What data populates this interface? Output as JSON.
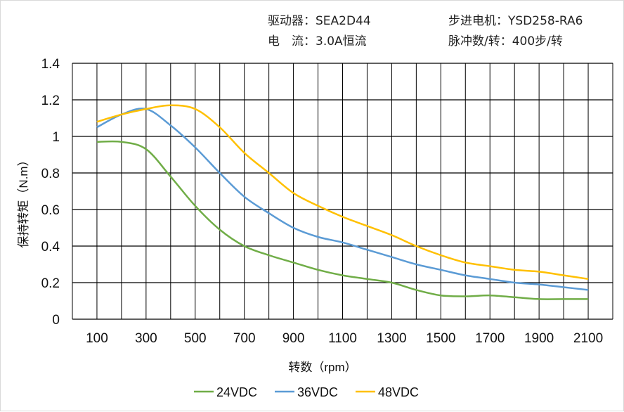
{
  "header": {
    "driver": "驱动器：SEA2D44",
    "motor": "步进电机：YSD258-RA6",
    "current": "电　流：3.0A恒流",
    "pulses": "脉冲数/转：400步/转"
  },
  "chart_data": {
    "type": "line",
    "xlabel": "转数（rpm）",
    "ylabel": "保持转矩（N.m）",
    "xlim": [
      0,
      2200
    ],
    "ylim": [
      0,
      1.4
    ],
    "grid": true,
    "legend": "bottom",
    "xticks": [
      "100",
      "300",
      "500",
      "700",
      "900",
      "1100",
      "1300",
      "1500",
      "1700",
      "1900",
      "2100"
    ],
    "yticks": [
      "0",
      "0.2",
      "0.4",
      "0.6",
      "0.8",
      "1",
      "1.2",
      "1.4"
    ],
    "x": [
      100,
      200,
      300,
      400,
      500,
      600,
      700,
      800,
      900,
      1000,
      1100,
      1200,
      1300,
      1400,
      1500,
      1600,
      1700,
      1800,
      1900,
      2000,
      2100
    ],
    "series": [
      {
        "name": "24VDC",
        "color": "#70ad47",
        "values": [
          0.97,
          0.97,
          0.93,
          0.78,
          0.62,
          0.49,
          0.4,
          0.35,
          0.31,
          0.27,
          0.24,
          0.22,
          0.2,
          0.16,
          0.13,
          0.125,
          0.13,
          0.12,
          0.11,
          0.11,
          0.11
        ]
      },
      {
        "name": "36VDC",
        "color": "#5b9bd5",
        "values": [
          1.05,
          1.12,
          1.15,
          1.06,
          0.94,
          0.8,
          0.67,
          0.58,
          0.5,
          0.45,
          0.42,
          0.38,
          0.34,
          0.3,
          0.27,
          0.24,
          0.22,
          0.2,
          0.19,
          0.175,
          0.16
        ]
      },
      {
        "name": "48VDC",
        "color": "#ffc000",
        "values": [
          1.08,
          1.12,
          1.15,
          1.17,
          1.15,
          1.05,
          0.91,
          0.8,
          0.69,
          0.62,
          0.56,
          0.51,
          0.46,
          0.4,
          0.35,
          0.31,
          0.29,
          0.27,
          0.26,
          0.24,
          0.22
        ]
      }
    ]
  }
}
